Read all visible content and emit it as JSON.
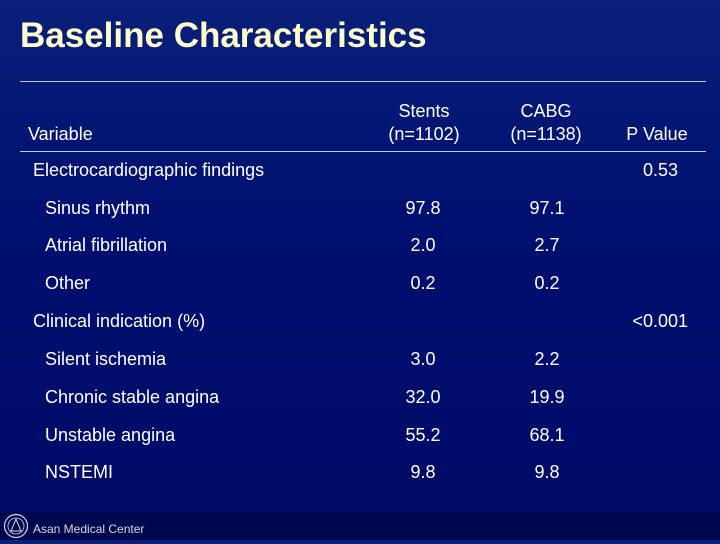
{
  "title": "Baseline Characteristics",
  "header": {
    "variable": "Variable",
    "stents_line1": "Stents",
    "stents_line2": "(n=1102)",
    "cabg_line1": "CABG",
    "cabg_line2": "(n=1138)",
    "pvalue": "P Value"
  },
  "sections": [
    {
      "label": "Electrocardiographic findings",
      "pvalue": "0.53",
      "rows": [
        {
          "label": "Sinus rhythm",
          "stents": "97.8",
          "cabg": "97.1"
        },
        {
          "label": "Atrial fibrillation",
          "stents": "2.0",
          "cabg": "2.7"
        },
        {
          "label": "Other",
          "stents": "0.2",
          "cabg": "0.2"
        }
      ]
    },
    {
      "label": "Clinical indication (%)",
      "pvalue": "<0.001",
      "rows": [
        {
          "label": "Silent ischemia",
          "stents": "3.0",
          "cabg": "2.2"
        },
        {
          "label": "Chronic stable angina",
          "stents": "32.0",
          "cabg": "19.9"
        },
        {
          "label": "Unstable angina",
          "stents": "55.2",
          "cabg": "68.1"
        },
        {
          "label": "NSTEMI",
          "stents": "9.8",
          "cabg": "9.8"
        }
      ]
    }
  ],
  "footer": {
    "org": "Asan Medical Center",
    "logo_icon": "asan-emblem-icon"
  },
  "colors": {
    "title": "#ffffcc",
    "background": "#001070"
  }
}
